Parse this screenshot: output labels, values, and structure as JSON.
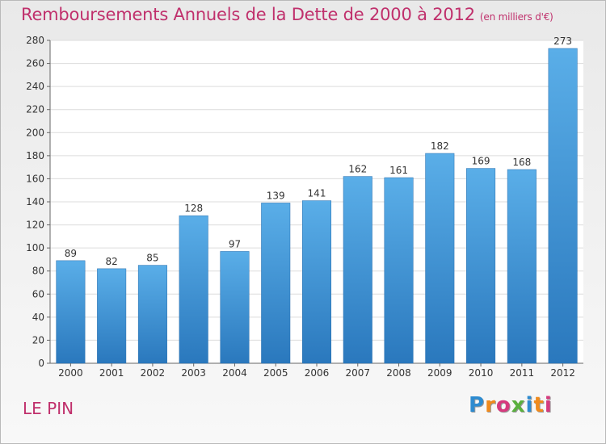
{
  "chart_data": {
    "type": "bar",
    "title": "Remboursements Annuels de la Dette de 2000 à 2012",
    "unit": "(en milliers d'€)",
    "categories": [
      "2000",
      "2001",
      "2002",
      "2003",
      "2004",
      "2005",
      "2006",
      "2007",
      "2008",
      "2009",
      "2010",
      "2011",
      "2012"
    ],
    "values": [
      89,
      82,
      85,
      128,
      97,
      139,
      141,
      162,
      161,
      182,
      169,
      168,
      273
    ],
    "ylim": [
      0,
      280
    ],
    "yticks": [
      0,
      20,
      40,
      60,
      80,
      100,
      120,
      140,
      160,
      180,
      200,
      220,
      240,
      260,
      280
    ],
    "grid": true,
    "bar_color": "#3a8fd8"
  },
  "footer": {
    "place": "LE PIN"
  },
  "logo": {
    "letters": [
      "P",
      "r",
      "o",
      "x",
      "i",
      "t",
      "i"
    ],
    "colors": [
      "#2d8bd0",
      "#f08a1c",
      "#d63a7e",
      "#5ab03e",
      "#2d8bd0",
      "#f08a1c",
      "#d63a7e"
    ]
  }
}
